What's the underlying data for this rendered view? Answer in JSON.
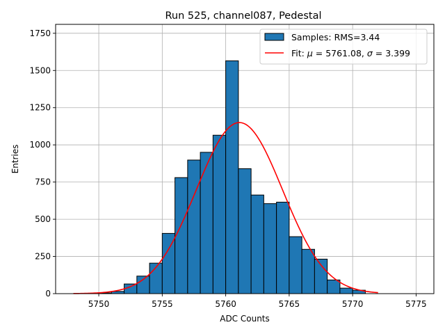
{
  "chart_data": {
    "type": "bar",
    "title": "Run 525, channel087, Pedestal",
    "xlabel": "ADC Counts",
    "ylabel": "Entries",
    "xlim": [
      5746.6,
      5776.4
    ],
    "ylim": [
      0,
      1810
    ],
    "xticks": [
      5750,
      5755,
      5760,
      5765,
      5770,
      5775
    ],
    "yticks": [
      0,
      250,
      500,
      750,
      1000,
      1250,
      1500,
      1750
    ],
    "grid": true,
    "legend_position": "top-right",
    "bin_edges": [
      5749,
      5750,
      5751,
      5752,
      5753,
      5754,
      5755,
      5756,
      5757,
      5758,
      5759,
      5760,
      5761,
      5762,
      5763,
      5764,
      5765,
      5766,
      5767,
      5768,
      5769,
      5770,
      5771,
      5772
    ],
    "series": [
      {
        "name": "Samples: RMS=3.44",
        "kind": "histogram",
        "color": "#1f77b4",
        "edgecolor": "#000000",
        "values": [
          2,
          5,
          15,
          65,
          118,
          205,
          405,
          780,
          898,
          950,
          1065,
          1565,
          840,
          663,
          605,
          615,
          383,
          298,
          232,
          92,
          37,
          23,
          0
        ]
      },
      {
        "name": "Fit: μ = 5761.08, σ = 3.399",
        "kind": "gaussian_fit",
        "color": "#ff0000",
        "mu": 5761.08,
        "sigma": 3.399,
        "amplitude": 1150,
        "x_range": [
          5748,
          5772
        ]
      }
    ]
  },
  "legend": {
    "samples_label": "Samples: RMS=3.44",
    "fit_label_prefix": "Fit: ",
    "fit_mu_symbol": "μ",
    "fit_mu_value": " = 5761.08, ",
    "fit_sigma_symbol": "σ",
    "fit_sigma_value": " = 3.399"
  }
}
